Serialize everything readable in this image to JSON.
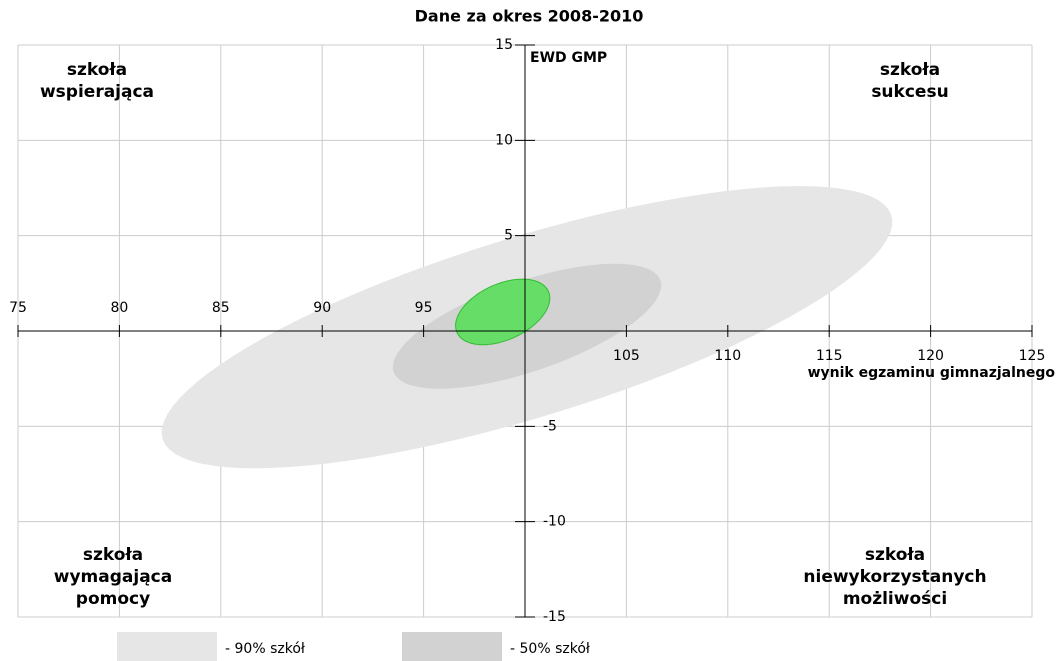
{
  "chart_data": {
    "type": "ellipse",
    "title": "Dane za okres 2008-2010",
    "xlabel": "wynik egzaminu gimnazjalnego",
    "ylabel": "EWD GMP",
    "xlim": [
      75,
      125
    ],
    "ylim": [
      -15,
      15
    ],
    "xticks": [
      75,
      80,
      85,
      90,
      95,
      105,
      110,
      115,
      120,
      125
    ],
    "yticks": [
      15,
      10,
      5,
      -5,
      -10,
      -15
    ],
    "axes_cross": [
      100,
      0
    ],
    "grid": true,
    "quadrant_labels": {
      "top_left": [
        "szkoła",
        "wspierająca"
      ],
      "top_right": [
        "szkoła",
        "sukcesu"
      ],
      "bottom_left": [
        "szkoła",
        "wymagająca",
        "pomocy"
      ],
      "bottom_right": [
        "szkoła",
        "niewykorzystanych",
        "możliwości"
      ]
    },
    "series": [
      {
        "name": "- 90% szkół",
        "color": "#e6e6e6",
        "center": [
          100.1,
          0.2
        ],
        "semi_axes": [
          18.9,
          4.7
        ],
        "angle": 18.2
      },
      {
        "name": "- 50% szkół",
        "color": "#d2d2d2",
        "center": [
          100.1,
          0.25
        ],
        "semi_axes": [
          7.0,
          2.35
        ],
        "angle": 20.3
      },
      {
        "color": "#66dd66",
        "center": [
          98.9,
          1.0
        ],
        "semi_axes": [
          2.5,
          1.45
        ],
        "angle": 27
      }
    ]
  }
}
